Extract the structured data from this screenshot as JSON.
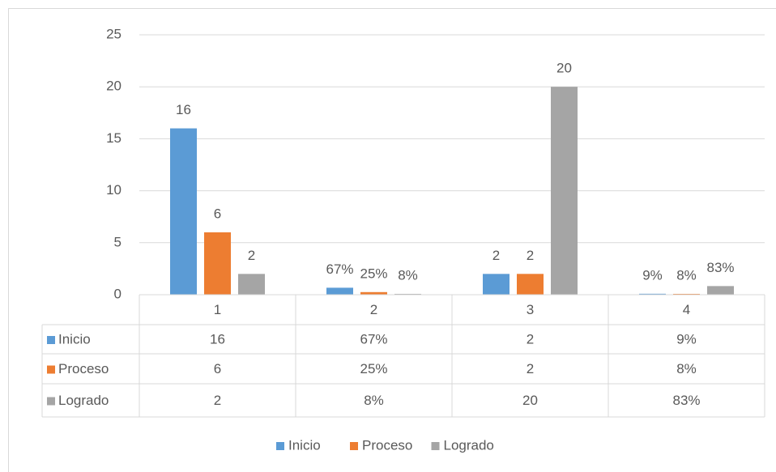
{
  "chart_data": {
    "type": "bar",
    "categories": [
      "1",
      "2",
      "3",
      "4"
    ],
    "series": [
      {
        "name": "Inicio",
        "color": "#5b9bd5",
        "values": [
          16,
          0.67,
          2,
          0.09
        ],
        "value_labels": [
          "16",
          "67%",
          "2",
          "9%"
        ]
      },
      {
        "name": "Proceso",
        "color": "#ed7d31",
        "values": [
          6,
          0.25,
          2,
          0.08
        ],
        "value_labels": [
          "6",
          "25%",
          "2",
          "8%"
        ]
      },
      {
        "name": "Logrado",
        "color": "#a5a5a5",
        "values": [
          2,
          0.08,
          20,
          0.83
        ],
        "value_labels": [
          "2",
          "8%",
          "20",
          "83%"
        ]
      }
    ],
    "ylim": [
      0,
      25
    ],
    "yticks": [
      0,
      5,
      10,
      15,
      20,
      25
    ],
    "grid": true,
    "data_table": true,
    "legend": "bottom"
  }
}
